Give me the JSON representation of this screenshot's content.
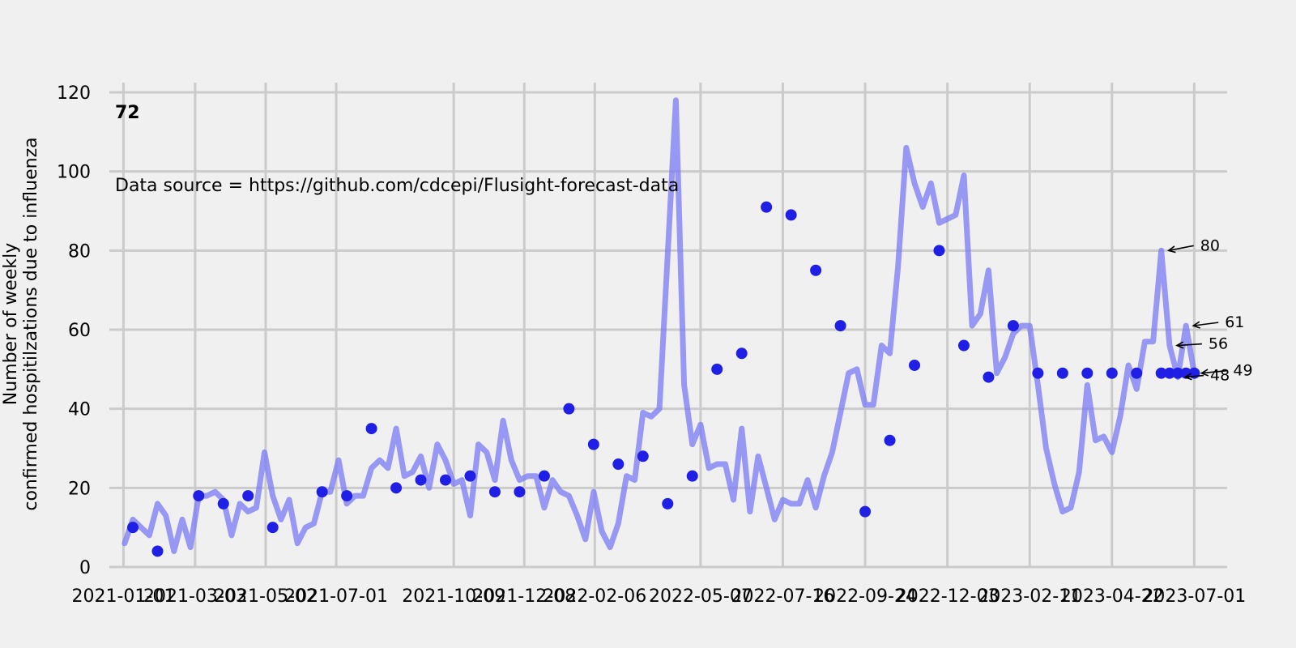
{
  "chart_data": {
    "type": "line",
    "ylabel_line1": "Number of weekly",
    "ylabel_line2": "confirmed hospitilzations due to influenza",
    "big_label": "72",
    "source_note": "Data source = https://github.com/cdcepi/Flusight-forecast-data",
    "ylim": [
      0,
      120
    ],
    "y_ticks": [
      0,
      20,
      40,
      60,
      80,
      100,
      120
    ],
    "x_range": [
      "2020-12-20",
      "2023-07-29"
    ],
    "x_ticks": [
      "2021-01-01",
      "2021-03-03",
      "2021-05-02",
      "2021-07-01",
      "2021-10-09",
      "2021-12-08",
      "2022-02-06",
      "2022-05-07",
      "2022-07-16",
      "2022-09-24",
      "2022-12-03",
      "2023-02-11",
      "2023-04-22",
      "2023-07-01"
    ],
    "grid": true,
    "line_color": "#7a7af5",
    "marker_color": "#1f1fe6",
    "series": [
      {
        "x": [
          "2021-01-02",
          "2021-01-09",
          "2021-01-16",
          "2021-01-23",
          "2021-01-30",
          "2021-02-06",
          "2021-02-13",
          "2021-02-20",
          "2021-02-27",
          "2021-03-06",
          "2021-03-13",
          "2021-03-20",
          "2021-03-27",
          "2021-04-03",
          "2021-04-10",
          "2021-04-17",
          "2021-04-24",
          "2021-05-01",
          "2021-05-08",
          "2021-05-15",
          "2021-05-22",
          "2021-05-29",
          "2021-06-05",
          "2021-06-12",
          "2021-06-19",
          "2021-06-26",
          "2021-07-03",
          "2021-07-10",
          "2021-07-17",
          "2021-07-24",
          "2021-07-31",
          "2021-08-07",
          "2021-08-14",
          "2021-08-21",
          "2021-08-28",
          "2021-09-04",
          "2021-09-11",
          "2021-09-18",
          "2021-09-25",
          "2021-10-02",
          "2021-10-09",
          "2021-10-16",
          "2021-10-23",
          "2021-10-30",
          "2021-11-06",
          "2021-11-13",
          "2021-11-20",
          "2021-11-27",
          "2021-12-04",
          "2021-12-11",
          "2021-12-18",
          "2021-12-25",
          "2022-01-01",
          "2022-01-08",
          "2022-01-15",
          "2022-01-22",
          "2022-01-29",
          "2022-02-05",
          "2022-02-12",
          "2022-02-19",
          "2022-02-26",
          "2022-03-05",
          "2022-03-12",
          "2022-03-19",
          "2022-03-26",
          "2022-04-02",
          "2022-04-09",
          "2022-04-16",
          "2022-04-23",
          "2022-04-30",
          "2022-05-07",
          "2022-05-14",
          "2022-05-21",
          "2022-05-28",
          "2022-06-04",
          "2022-06-11",
          "2022-06-18",
          "2022-06-25",
          "2022-07-02",
          "2022-07-09",
          "2022-07-16",
          "2022-07-23",
          "2022-07-30",
          "2022-08-06",
          "2022-08-13",
          "2022-08-20",
          "2022-08-27",
          "2022-09-03",
          "2022-09-10",
          "2022-09-17",
          "2022-09-24",
          "2022-10-01",
          "2022-10-08",
          "2022-10-15",
          "2022-10-22",
          "2022-10-29",
          "2022-11-05",
          "2022-11-12",
          "2022-11-19",
          "2022-11-26",
          "2022-12-03",
          "2022-12-10",
          "2022-12-17",
          "2022-12-24",
          "2022-12-31",
          "2023-01-07",
          "2023-01-14",
          "2023-01-21",
          "2023-01-28",
          "2023-02-04",
          "2023-02-11",
          "2023-02-18",
          "2023-02-25",
          "2023-03-04",
          "2023-03-11",
          "2023-03-18",
          "2023-03-25",
          "2023-04-01",
          "2023-04-08",
          "2023-04-15",
          "2023-04-22",
          "2023-04-29",
          "2023-05-06",
          "2023-05-13",
          "2023-05-20",
          "2023-05-27",
          "2023-06-03",
          "2023-06-10",
          "2023-06-17",
          "2023-06-24",
          "2023-07-01"
        ],
        "y": [
          6,
          12,
          10,
          8,
          16,
          13,
          4,
          12,
          5,
          18,
          18,
          19,
          17,
          8,
          16,
          14,
          15,
          29,
          18,
          12,
          17,
          6,
          10,
          11,
          19,
          19,
          27,
          16,
          18,
          18,
          25,
          27,
          25,
          35,
          23,
          24,
          28,
          20,
          31,
          27,
          21,
          22,
          13,
          31,
          29,
          22,
          37,
          27,
          22,
          23,
          23,
          15,
          22,
          19,
          18,
          13,
          7,
          19,
          9,
          5,
          11,
          23,
          22,
          39,
          38,
          40,
          79,
          118,
          46,
          31,
          36,
          25,
          26,
          26,
          17,
          35,
          14,
          28,
          20,
          12,
          17,
          16,
          16,
          22,
          15,
          23,
          29,
          39,
          49,
          50,
          41,
          41,
          56,
          54,
          76,
          106,
          97,
          91,
          97,
          87,
          88,
          89,
          99,
          61,
          64,
          75,
          49,
          53,
          59,
          61,
          61,
          46,
          30,
          21,
          14,
          15,
          24,
          46,
          32,
          33,
          29,
          38,
          51,
          45,
          57,
          57,
          80,
          56,
          48,
          61,
          49
        ],
        "marker_x": [
          "2021-01-09",
          "2021-01-30",
          "2021-03-06",
          "2021-03-27",
          "2021-04-17",
          "2021-05-08",
          "2021-06-19",
          "2021-07-10",
          "2021-07-31",
          "2021-08-21",
          "2021-09-11",
          "2021-10-02",
          "2021-10-23",
          "2021-11-13",
          "2021-12-04",
          "2021-12-25",
          "2022-01-15",
          "2022-02-05",
          "2022-02-26",
          "2022-03-19",
          "2022-04-09",
          "2022-04-30",
          "2022-05-21",
          "2022-06-11",
          "2022-07-02",
          "2022-07-23",
          "2022-08-13",
          "2022-09-03",
          "2022-09-24",
          "2022-10-15",
          "2022-11-05",
          "2022-11-26",
          "2022-12-17",
          "2023-01-07",
          "2023-01-28",
          "2023-02-18",
          "2023-03-11",
          "2023-04-01",
          "2023-04-22",
          "2023-05-13",
          "2023-06-03",
          "2023-06-10",
          "2023-06-17",
          "2023-06-24",
          "2023-07-01"
        ],
        "marker_y": [
          10,
          4,
          18,
          16,
          18,
          10,
          19,
          18,
          35,
          20,
          22,
          22,
          23,
          19,
          19,
          23,
          40,
          31,
          26,
          28,
          16,
          23,
          50,
          54,
          91,
          89,
          75,
          61,
          14,
          32,
          51,
          80,
          56,
          48,
          61,
          49,
          49,
          49,
          49,
          49,
          49,
          49,
          49,
          49,
          49
        ]
      }
    ],
    "annotations": [
      {
        "x": "2023-06-03",
        "y": 80,
        "text": "80"
      },
      {
        "x": "2023-06-24",
        "y": 61,
        "text": "61"
      },
      {
        "x": "2023-06-10",
        "y": 56,
        "text": "56"
      },
      {
        "x": "2023-07-01",
        "y": 49,
        "text": "49"
      },
      {
        "x": "2023-06-17",
        "y": 48,
        "text": "48"
      }
    ]
  }
}
